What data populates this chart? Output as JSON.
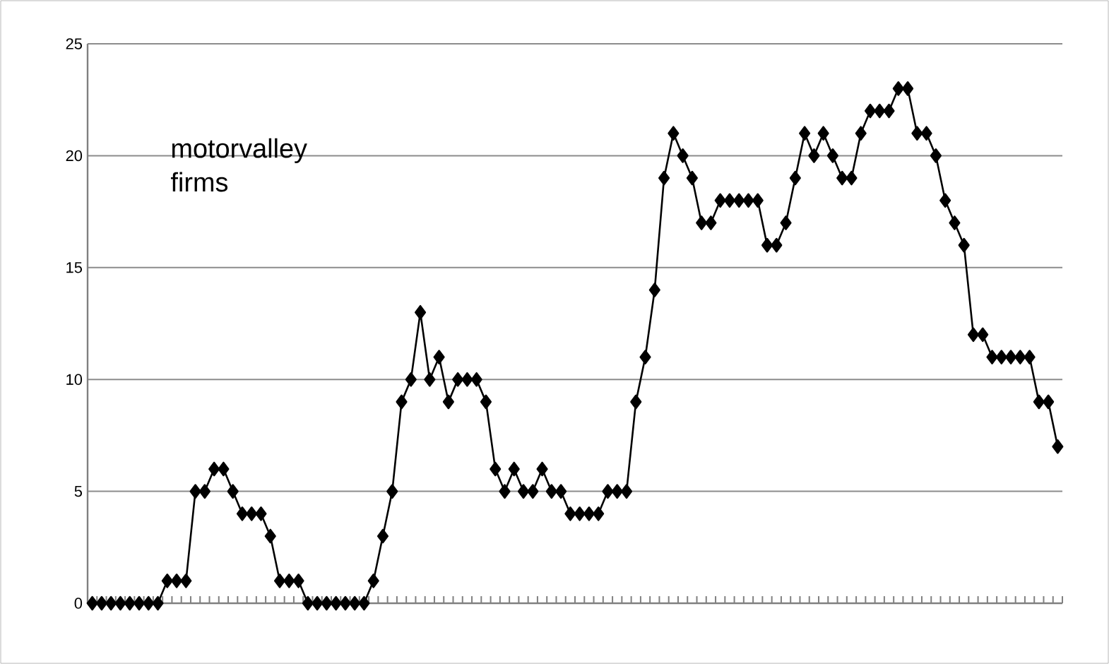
{
  "chart_data": {
    "type": "line",
    "annotations": [
      "motorvalley firms"
    ],
    "categories": [
      null,
      null,
      null,
      null,
      null,
      null,
      null,
      null,
      null,
      null,
      null,
      null,
      null,
      null,
      null,
      null,
      null,
      null,
      null,
      null,
      null,
      null,
      null,
      null,
      null,
      null,
      null,
      null,
      null,
      null,
      null,
      null,
      null,
      null,
      null,
      null,
      null,
      null,
      null,
      null,
      null,
      null,
      null,
      null,
      null,
      null,
      null,
      null,
      null,
      null,
      null,
      null,
      null,
      null,
      null,
      null,
      null,
      null,
      null,
      null,
      null,
      null,
      null,
      null,
      null,
      null,
      null,
      null,
      null,
      null,
      null,
      null,
      null,
      null,
      null,
      null,
      null,
      null,
      null,
      null,
      null,
      null,
      null,
      null,
      null,
      null,
      null,
      null,
      null,
      null,
      null,
      null,
      null,
      null,
      null,
      null,
      null,
      null,
      null,
      null,
      null,
      null,
      null,
      null
    ],
    "series": [
      {
        "color": "#000000",
        "values": [
          0,
          0,
          0,
          0,
          0,
          0,
          0,
          0,
          1,
          1,
          1,
          5,
          5,
          6,
          6,
          5,
          4,
          4,
          4,
          3,
          1,
          1,
          1,
          0,
          0,
          0,
          0,
          0,
          0,
          0,
          1,
          3,
          5,
          9,
          10,
          13,
          10,
          11,
          9,
          10,
          10,
          10,
          9,
          6,
          5,
          6,
          5,
          5,
          6,
          5,
          5,
          4,
          4,
          4,
          4,
          5,
          5,
          5,
          9,
          11,
          14,
          19,
          21,
          20,
          19,
          17,
          17,
          18,
          18,
          18,
          18,
          18,
          16,
          16,
          17,
          19,
          21,
          20,
          21,
          20,
          19,
          19,
          21,
          22,
          22,
          22,
          23,
          23,
          21,
          21,
          20,
          18,
          17,
          16,
          12,
          12,
          11,
          11,
          11,
          11,
          11,
          9,
          9,
          7
        ]
      }
    ],
    "ylim": [
      0,
      25
    ],
    "yticks": [
      0,
      5,
      10,
      15,
      20,
      25
    ],
    "grid": "y",
    "marker": "diamond",
    "line_style": "solid"
  }
}
